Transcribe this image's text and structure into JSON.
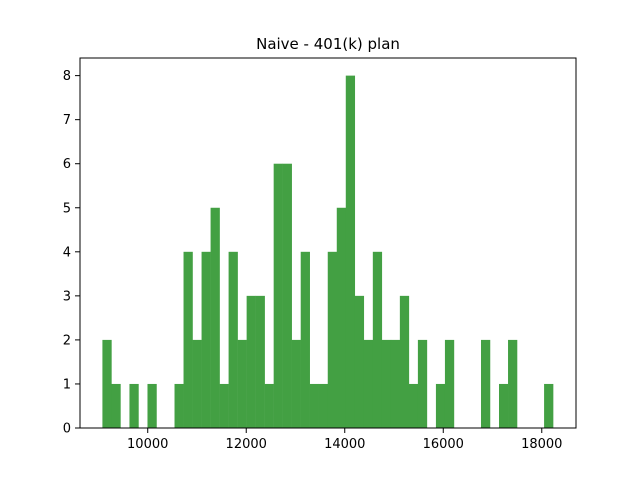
{
  "chart_data": {
    "type": "bar",
    "title": "Naive - 401(k) plan",
    "xlabel": "",
    "ylabel": "",
    "color": "#43a043",
    "xlim": [
      8625,
      18695
    ],
    "ylim": [
      0,
      8.4
    ],
    "xticks": [
      10000,
      12000,
      14000,
      16000,
      18000
    ],
    "xtick_labels": [
      "10000",
      "12000",
      "14000",
      "16000",
      "18000"
    ],
    "yticks": [
      0,
      1,
      2,
      3,
      4,
      5,
      6,
      7,
      8
    ],
    "ytick_labels": [
      "0",
      "1",
      "2",
      "3",
      "4",
      "5",
      "6",
      "7",
      "8"
    ],
    "bin_edges": [
      9080,
      9263,
      9446,
      9629,
      9812,
      9995,
      10178,
      10361,
      10544,
      10727,
      10910,
      11093,
      11276,
      11459,
      11642,
      11825,
      12008,
      12191,
      12374,
      12557,
      12740,
      12923,
      13106,
      13289,
      13472,
      13655,
      13838,
      14021,
      14204,
      14387,
      14570,
      14753,
      14936,
      15119,
      15302,
      15485,
      15668,
      15851,
      16034,
      16217,
      16400,
      16583,
      16766,
      16949,
      17132,
      17315,
      17498,
      17681,
      17864,
      18047,
      18230
    ],
    "counts": [
      2,
      1,
      0,
      1,
      0,
      1,
      0,
      0,
      1,
      4,
      2,
      4,
      5,
      1,
      4,
      2,
      3,
      3,
      1,
      6,
      6,
      2,
      4,
      1,
      1,
      4,
      5,
      8,
      3,
      2,
      4,
      2,
      2,
      3,
      1,
      2,
      0,
      1,
      2,
      0,
      0,
      0,
      2,
      0,
      1,
      2,
      0,
      0,
      0,
      1
    ]
  }
}
